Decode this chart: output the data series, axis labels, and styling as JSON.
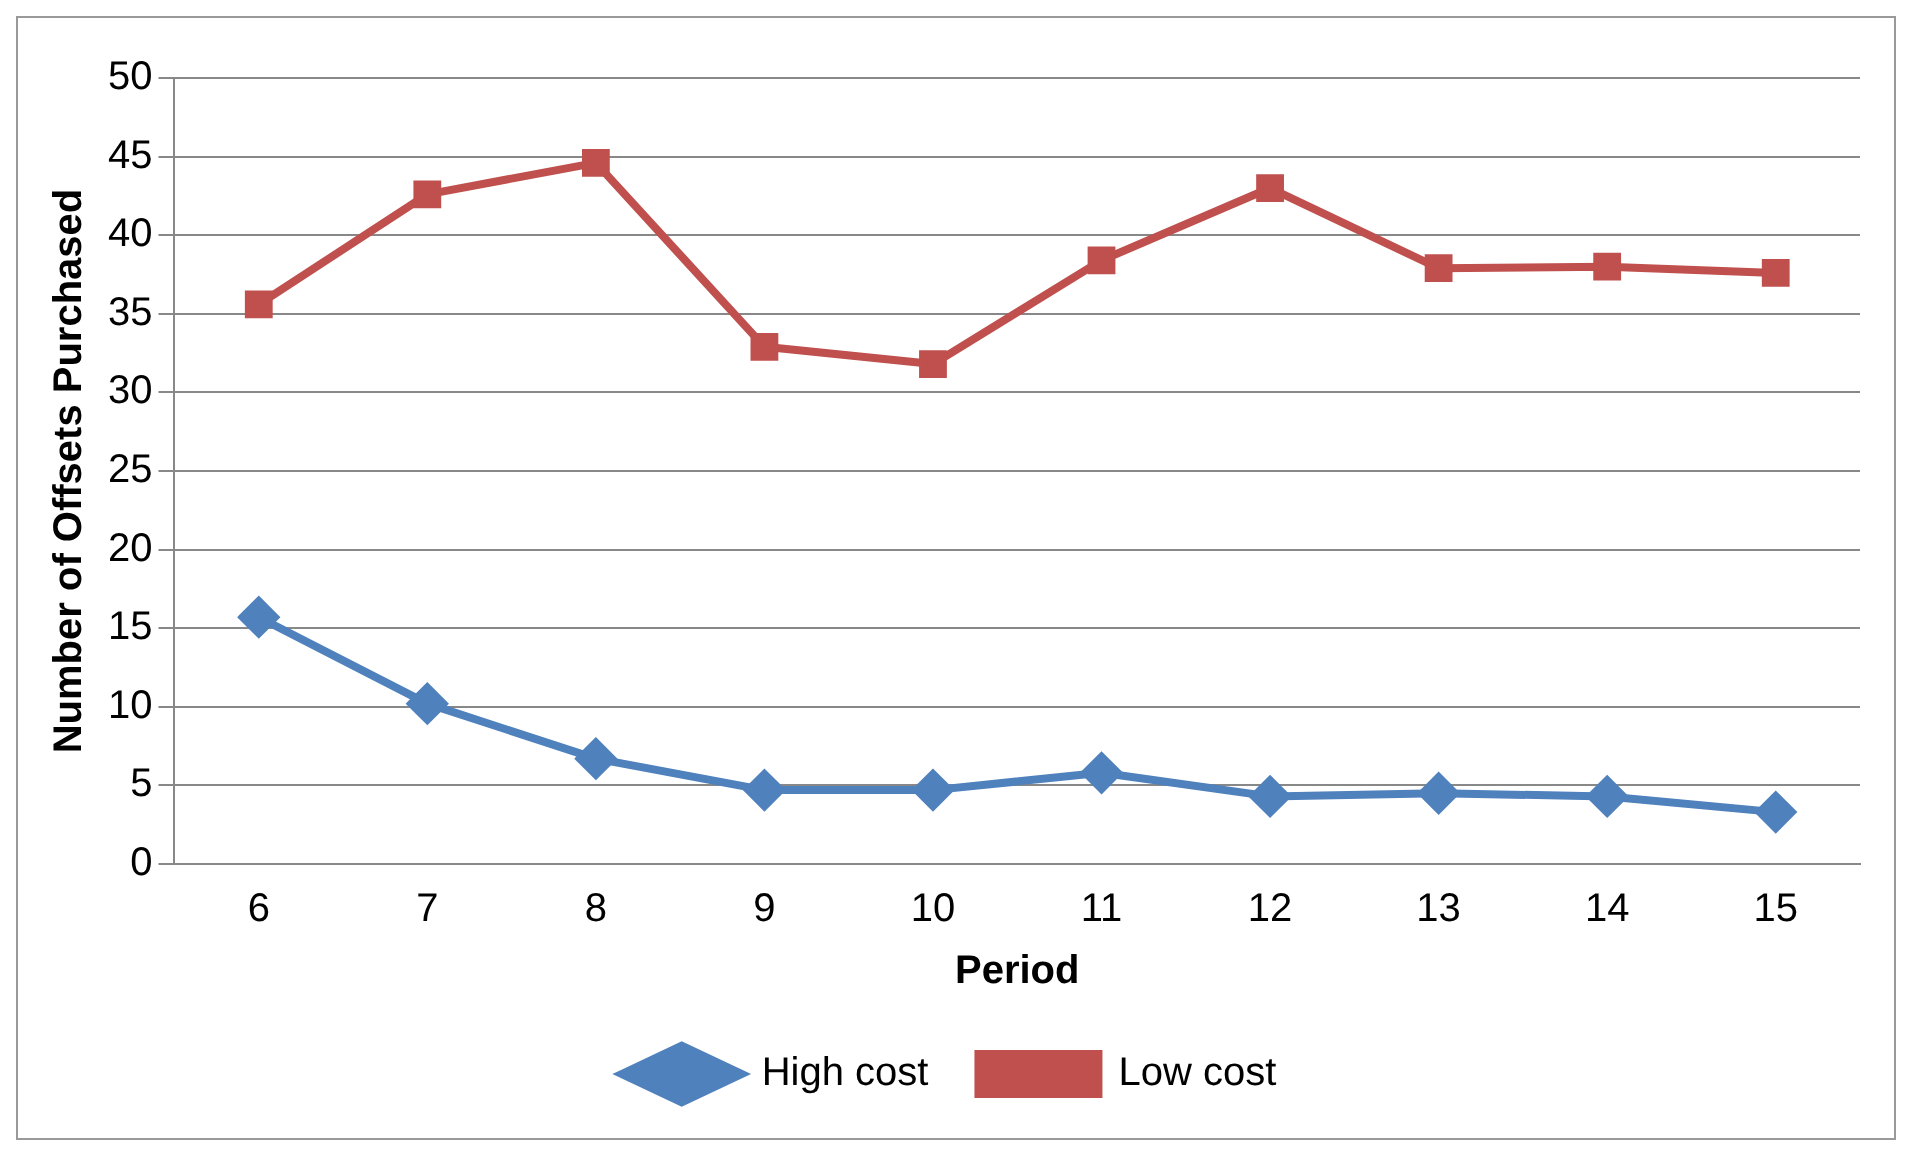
{
  "chart_data": {
    "type": "line",
    "xlabel": "Period",
    "ylabel": "Number of Offsets Purchased",
    "categories": [
      "6",
      "7",
      "8",
      "9",
      "10",
      "11",
      "12",
      "13",
      "14",
      "15"
    ],
    "series": [
      {
        "name": "High cost",
        "color": "#4f81bd",
        "marker": "diamond",
        "values": [
          15.7,
          10.2,
          6.7,
          4.7,
          4.7,
          5.8,
          4.3,
          4.5,
          4.3,
          3.3
        ]
      },
      {
        "name": "Low cost",
        "color": "#c0504d",
        "marker": "square",
        "values": [
          35.6,
          42.6,
          44.6,
          32.9,
          31.8,
          38.4,
          43.0,
          37.9,
          38.0,
          37.6
        ]
      }
    ],
    "ylim": [
      0,
      50
    ],
    "yticks": [
      0,
      5,
      10,
      15,
      20,
      25,
      30,
      35,
      40,
      45,
      50
    ],
    "grid": "y",
    "legend": "bottom",
    "line_style": "solid"
  }
}
